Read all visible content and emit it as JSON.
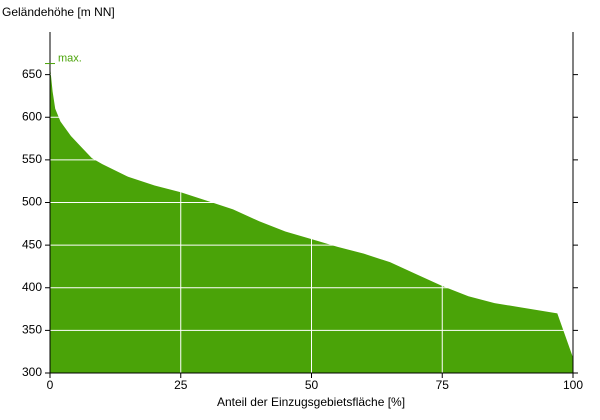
{
  "chart_data": {
    "type": "area",
    "y_label": "Geländehöhe [m NN]",
    "x_label": "Anteil der Einzugsgebietsfläche [%]",
    "annotation": {
      "label": "max.",
      "value": 663
    },
    "color": "#4aa308",
    "x": [
      0,
      0.5,
      1,
      2,
      4,
      6,
      8,
      10,
      15,
      20,
      25,
      30,
      35,
      40,
      45,
      50,
      55,
      60,
      65,
      70,
      75,
      80,
      85,
      90,
      97,
      100
    ],
    "values": [
      660,
      630,
      610,
      595,
      578,
      565,
      552,
      545,
      530,
      520,
      512,
      502,
      492,
      478,
      466,
      457,
      448,
      440,
      430,
      416,
      402,
      390,
      382,
      377,
      370,
      318
    ],
    "xlim": [
      0,
      100
    ],
    "xticks": [
      0,
      25,
      50,
      75,
      100
    ],
    "ylim": [
      300,
      700
    ],
    "yticks": [
      300,
      350,
      400,
      450,
      500,
      550,
      600,
      650
    ],
    "grid": true
  }
}
